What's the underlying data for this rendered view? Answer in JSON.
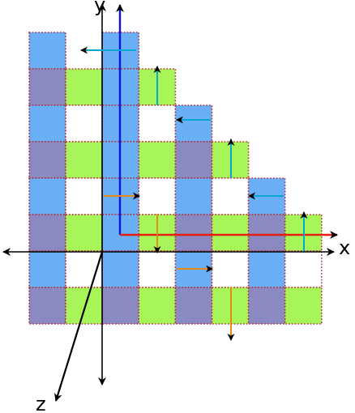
{
  "colors": {
    "blue": "#6aaef5",
    "purple": "#8b89c1",
    "green": "#a8f55a",
    "white": "#ffffff",
    "dots": "#b5303a",
    "axis": "#000000",
    "y_arrow": "#0a14e0",
    "x_arrow": "#e21f10",
    "teal": "#0aa6d2",
    "orange": "#e58a14"
  },
  "axes": {
    "x_label": "x",
    "y_label": "y",
    "z_label": "z"
  },
  "grid": {
    "columns": [
      {
        "col": 0,
        "row_start": 0,
        "pattern": [
          "blue",
          "purple",
          "blue",
          "purple",
          "blue",
          "purple",
          "blue",
          "purple"
        ]
      },
      {
        "col": 1,
        "row_start": 1,
        "pattern": [
          "green",
          "white",
          "green",
          "white",
          "green",
          "white",
          "green"
        ]
      },
      {
        "col": 2,
        "row_start": 0,
        "pattern": [
          "blue",
          "blue",
          "blue",
          "blue",
          "blue",
          "blue",
          "blue",
          "purple"
        ]
      },
      {
        "col": 3,
        "row_start": 1,
        "pattern": [
          "green",
          "white",
          "green",
          "white",
          "green",
          "white",
          "green"
        ]
      },
      {
        "col": 4,
        "row_start": 2,
        "pattern": [
          "blue",
          "purple",
          "blue",
          "purple",
          "blue",
          "purple"
        ]
      },
      {
        "col": 5,
        "row_start": 3,
        "pattern": [
          "green",
          "white",
          "green",
          "white",
          "green"
        ]
      },
      {
        "col": 6,
        "row_start": 4,
        "pattern": [
          "blue",
          "purple",
          "blue",
          "purple"
        ]
      },
      {
        "col": 7,
        "row_start": 5,
        "pattern": [
          "green",
          "white",
          "green"
        ]
      }
    ]
  },
  "arrows": [
    {
      "name": "arrow-left-top",
      "color": "teal"
    },
    {
      "name": "arrow-up-col3",
      "color": "teal"
    },
    {
      "name": "arrow-left-col4",
      "color": "teal"
    },
    {
      "name": "arrow-up-col5",
      "color": "teal"
    },
    {
      "name": "arrow-left-col6",
      "color": "teal"
    },
    {
      "name": "arrow-up-col7",
      "color": "teal"
    },
    {
      "name": "arrow-right-col2",
      "color": "orange"
    },
    {
      "name": "arrow-down-col3",
      "color": "orange"
    },
    {
      "name": "arrow-right-col4",
      "color": "orange"
    },
    {
      "name": "arrow-down-col5",
      "color": "orange"
    }
  ]
}
